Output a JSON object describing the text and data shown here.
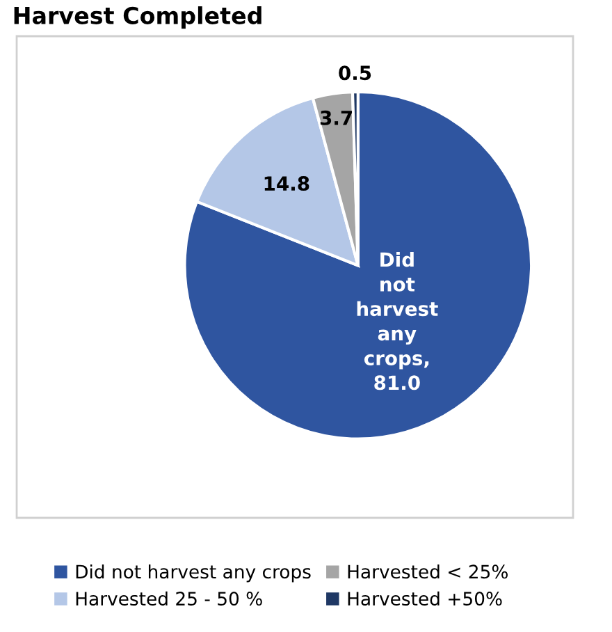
{
  "chart_data": {
    "type": "pie",
    "title": "Harvest Completed",
    "categories": [
      "Did not harvest any crops",
      "Harvested 25 - 50 %",
      "Harvested < 25%",
      "Harvested +50%"
    ],
    "values": [
      81.0,
      14.8,
      3.7,
      0.5
    ],
    "colors": [
      "#2f55a0",
      "#b4c7e7",
      "#a5a5a5",
      "#1f3864"
    ],
    "value_labels": [
      "Did not harvest any crops, 81.0",
      "14.8",
      "3.7",
      "0.5"
    ],
    "legend": "bottom"
  }
}
